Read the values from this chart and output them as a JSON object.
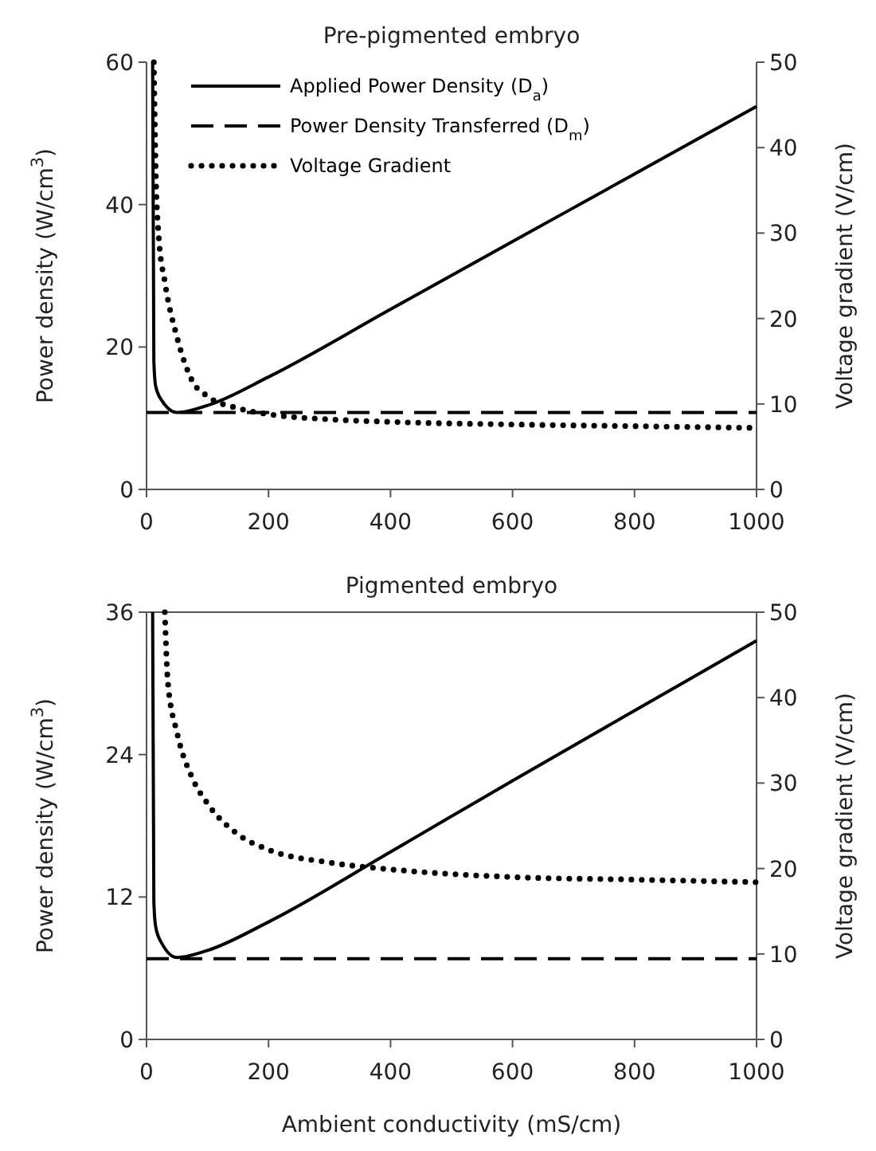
{
  "chart_data": [
    {
      "type": "line",
      "title": "Pre-pigmented embryo",
      "ylabel": "Power density (W/cm$^{3}$)",
      "y2label": "Voltage gradient (V/cm)",
      "xlim": [
        0,
        1000
      ],
      "xticks": [
        0,
        200,
        400,
        600,
        800,
        1000
      ],
      "ylim": [
        0,
        60
      ],
      "yticks": [
        0,
        20,
        40,
        60
      ],
      "y2lim": [
        0,
        50
      ],
      "y2ticks": [
        0,
        10,
        20,
        30,
        40,
        50
      ],
      "legend": "top",
      "grid": false,
      "series": [
        {
          "name": "Applied Power Density (D$_{a}$)",
          "color": "#000000",
          "line_style": "solid",
          "x": [
            10,
            12,
            15,
            25,
            50,
            100,
            200,
            400,
            600,
            800,
            1000
          ],
          "values": [
            60,
            18,
            14.5,
            12.5,
            10.8,
            11.8,
            15.8,
            25.3,
            34.8,
            44.3,
            53.8
          ]
        },
        {
          "name": "Power Density Transferred (D$_{m}$)",
          "color": "#000000",
          "line_style": "dashed",
          "x": [
            0,
            1000
          ],
          "values": [
            10.8,
            10.8
          ]
        },
        {
          "name": "Voltage Gradient",
          "color": "#000000",
          "line_style": "dotted",
          "axis": "y2",
          "x": [
            12,
            15,
            20,
            30,
            50,
            75,
            100,
            150,
            200,
            300,
            400,
            600,
            800,
            1000
          ],
          "values": [
            50,
            37.5,
            29.6,
            24.3,
            17.8,
            12.7,
            10.9,
            9.5,
            8.8,
            8.2,
            7.9,
            7.6,
            7.4,
            7.2
          ]
        }
      ]
    },
    {
      "type": "line",
      "title": "Pigmented embryo",
      "xlabel": "Ambient conductivity (mS/cm)",
      "ylabel": "Power density (W/cm$^{3}$)",
      "y2label": "Voltage gradient (V/cm)",
      "xlim": [
        0,
        1000
      ],
      "xticks": [
        0,
        200,
        400,
        600,
        800,
        1000
      ],
      "ylim": [
        0,
        36
      ],
      "yticks": [
        0,
        12,
        24,
        36
      ],
      "y2lim": [
        0,
        50
      ],
      "y2ticks": [
        0,
        10,
        20,
        30,
        40,
        50
      ],
      "grid": false,
      "series": [
        {
          "color": "#000000",
          "line_style": "solid",
          "x": [
            10,
            12,
            15,
            25,
            50,
            100,
            200,
            400,
            600,
            800,
            1000
          ],
          "values": [
            36,
            11.6,
            9.5,
            8.1,
            6.9,
            7.5,
            9.9,
            15.8,
            21.8,
            27.7,
            33.6
          ]
        },
        {
          "color": "#000000",
          "line_style": "dashed",
          "x": [
            0,
            1000
          ],
          "values": [
            6.8,
            6.8
          ]
        },
        {
          "color": "#000000",
          "line_style": "dotted",
          "axis": "y2",
          "x": [
            30,
            35,
            50,
            75,
            100,
            150,
            200,
            300,
            400,
            600,
            800,
            1000
          ],
          "values": [
            50,
            41.8,
            35.9,
            30.6,
            27.6,
            24,
            22.2,
            20.7,
            19.9,
            19,
            18.7,
            18.4
          ]
        }
      ]
    }
  ]
}
